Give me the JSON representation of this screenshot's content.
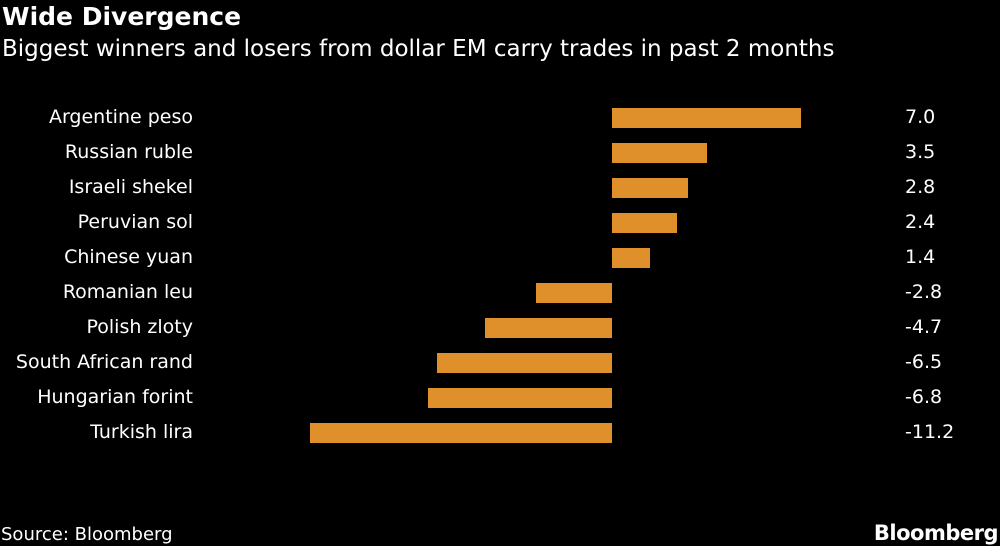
{
  "header": {
    "title": "Wide Divergence",
    "subtitle": "Biggest winners and losers from dollar EM carry trades in past 2 months"
  },
  "footer": {
    "source": "Source: Bloomberg",
    "logo": "Bloomberg"
  },
  "colors": {
    "bar": "#e0902a",
    "background": "#000000",
    "text": "#ffffff"
  },
  "rows": [
    {
      "label": "Argentine peso",
      "value": 7.0,
      "display": "7.0"
    },
    {
      "label": "Russian ruble",
      "value": 3.5,
      "display": "3.5"
    },
    {
      "label": "Israeli shekel",
      "value": 2.8,
      "display": "2.8"
    },
    {
      "label": "Peruvian sol",
      "value": 2.4,
      "display": "2.4"
    },
    {
      "label": "Chinese yuan",
      "value": 1.4,
      "display": "1.4"
    },
    {
      "label": "Romanian leu",
      "value": -2.8,
      "display": "-2.8"
    },
    {
      "label": "Polish zloty",
      "value": -4.7,
      "display": "-4.7"
    },
    {
      "label": "South African rand",
      "value": -6.5,
      "display": "-6.5"
    },
    {
      "label": "Hungarian forint",
      "value": -6.8,
      "display": "-6.8"
    },
    {
      "label": "Turkish lira",
      "value": -11.2,
      "display": "-11.2"
    }
  ],
  "chart_data": {
    "type": "bar",
    "orientation": "horizontal",
    "title": "Wide Divergence",
    "subtitle": "Biggest winners and losers from dollar EM carry trades in past 2 months",
    "categories": [
      "Argentine peso",
      "Russian ruble",
      "Israeli shekel",
      "Peruvian sol",
      "Chinese yuan",
      "Romanian leu",
      "Polish zloty",
      "South African rand",
      "Hungarian forint",
      "Turkish lira"
    ],
    "values": [
      7.0,
      3.5,
      2.8,
      2.4,
      1.4,
      -2.8,
      -4.7,
      -6.5,
      -6.8,
      -11.2
    ],
    "xlabel": "",
    "ylabel": "",
    "grid": false,
    "legend": null,
    "data_labels": "right-aligned column",
    "xlim": [
      -11.2,
      7.0
    ],
    "source": "Source: Bloomberg"
  }
}
